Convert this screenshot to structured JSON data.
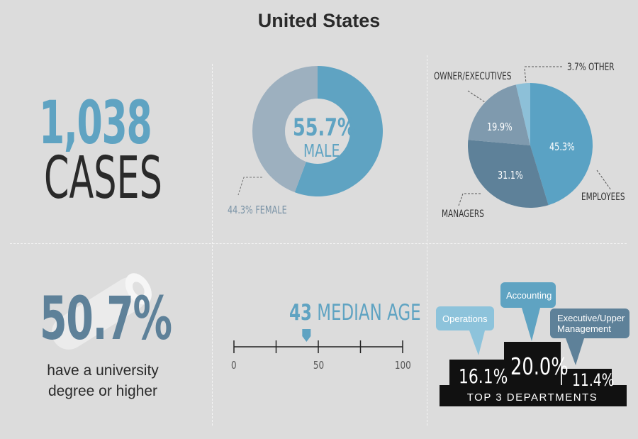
{
  "title": "United States",
  "cases": {
    "number": "1,038",
    "label": "CASES"
  },
  "gender": {
    "center_pct": "55.7%",
    "center_label": "MALE",
    "female_label": "44.3% FEMALE"
  },
  "roles": {
    "slice_labels": [
      "45.3%",
      "31.1%",
      "19.9%"
    ],
    "callouts": [
      "EMPLOYEES",
      "MANAGERS",
      "OWNER/EXECUTIVES",
      "3.7% OTHER"
    ]
  },
  "education": {
    "pct": "50.7%",
    "text_line1": "have a university",
    "text_line2": "degree or higher"
  },
  "age": {
    "value": "43",
    "label": "MEDIAN AGE",
    "ticks": [
      "0",
      "50",
      "100"
    ]
  },
  "departments": {
    "title": "TOP 3 DEPARTMENTS",
    "bubbles": [
      "Operations",
      "Accounting",
      "Executive/Upper Management"
    ],
    "values": [
      "16.1%",
      "20.0%",
      "11.4%"
    ]
  },
  "colors": {
    "accent_blue": "#5fa3c2",
    "slate": "#5e8199",
    "dark": "#2a2a2a",
    "gray_slice": "#9db0bf"
  },
  "chart_data": [
    {
      "type": "pie",
      "categories": [
        "MALE",
        "FEMALE"
      ],
      "values": [
        55.7,
        44.3
      ],
      "colors": [
        "#5fa3c2",
        "#9db0bf"
      ]
    },
    {
      "type": "pie",
      "categories": [
        "EMPLOYEES",
        "MANAGERS",
        "OWNER/EXECUTIVES",
        "OTHER"
      ],
      "values": [
        45.3,
        31.1,
        19.9,
        3.7
      ],
      "colors": [
        "#5aa2c4",
        "#5e8199",
        "#7f9aae",
        "#8dc0d8"
      ]
    },
    {
      "type": "bar",
      "title": "TOP 3 DEPARTMENTS",
      "categories": [
        "Operations",
        "Accounting",
        "Executive/Upper Management"
      ],
      "values": [
        16.1,
        20.0,
        11.4
      ]
    },
    {
      "type": "scatter",
      "xlabel": "MEDIAN AGE",
      "xlim": [
        0,
        100
      ],
      "x": [
        43
      ]
    }
  ]
}
